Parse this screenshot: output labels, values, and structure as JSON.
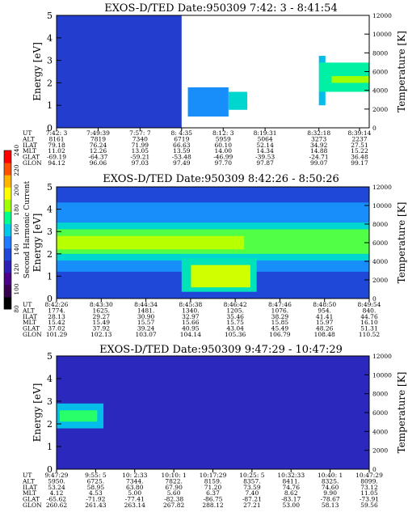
{
  "chart_data": [
    {
      "type": "heatmap",
      "title": "EXOS-D/TED   Date:950309  7:42: 3 - 8:41:54",
      "ylabel": "Energy [eV]",
      "y2label": "Temperature [K]",
      "ylim": [
        0,
        5
      ],
      "y2lim": [
        0,
        12000
      ],
      "yticks": [
        "0",
        "1",
        "2",
        "3",
        "4",
        "5"
      ],
      "y2ticks": [
        "0",
        "2000",
        "4000",
        "6000",
        "8000",
        "10000",
        "12000"
      ],
      "data_gap": "8:19:31 - 8:32:18",
      "bands": [
        {
          "x_start": 0.0,
          "x_end": 0.4,
          "energy_low": 0.0,
          "energy_high": 5.0,
          "level": 0.38
        },
        {
          "x_start": 0.42,
          "x_end": 0.55,
          "energy_low": 0.5,
          "energy_high": 1.8,
          "level": 0.5
        },
        {
          "x_start": 0.55,
          "x_end": 0.61,
          "energy_low": 0.8,
          "energy_high": 1.6,
          "level": 0.58
        },
        {
          "x_start": 0.8,
          "x_end": 0.86,
          "energy_low": 1.0,
          "energy_high": 3.2,
          "level": 0.55
        },
        {
          "x_start": 0.84,
          "x_end": 1.0,
          "energy_low": 1.6,
          "energy_high": 2.9,
          "level": 0.62
        },
        {
          "x_start": 0.88,
          "x_end": 1.0,
          "energy_low": 2.0,
          "energy_high": 2.3,
          "level": 0.72
        }
      ],
      "ephemeris_labels": [
        "UT",
        "ALT",
        "ILAT",
        "MLT",
        "GLAT",
        "GLON"
      ],
      "ephemeris": [
        [
          "7:42: 3",
          "8161",
          "79.18",
          "11.02",
          "-69.19",
          "94.12"
        ],
        [
          "7:49:39",
          "7819",
          "76.24",
          "12.26",
          "-64.37",
          "96.06"
        ],
        [
          "7:57: 7",
          "7340",
          "71.99",
          "13.05",
          "-59.21",
          "97.03"
        ],
        [
          "8: 4:35",
          "6719",
          "66.63",
          "13.59",
          "-53.48",
          "97.49"
        ],
        [
          "8:12: 3",
          "5959",
          "60.10",
          "14.00",
          "-46.99",
          "97.70"
        ],
        [
          "8:19:31",
          "5064",
          "52.14",
          "14.34",
          "-39.53",
          "97.87"
        ],
        [
          "8:32:18",
          "3273",
          "34.92",
          "14.88",
          "-24.71",
          "99.07"
        ],
        [
          "8:39:14",
          "2237",
          "27.51",
          "15.22",
          "36.48",
          "99.17"
        ]
      ]
    },
    {
      "type": "heatmap",
      "title": "EXOS-D/TED   Date:950309  8:42:26 - 8:50:26",
      "ylabel": "Energy [eV]",
      "y2label": "Temperature [K]",
      "ylim": [
        0,
        5
      ],
      "y2lim": [
        0,
        12000
      ],
      "yticks": [
        "0",
        "1",
        "2",
        "3",
        "4",
        "5"
      ],
      "y2ticks": [
        "0",
        "2000",
        "4000",
        "6000",
        "8000",
        "10000",
        "12000"
      ],
      "bands": [
        {
          "x_start": 0.0,
          "x_end": 1.0,
          "energy_low": 0.0,
          "energy_high": 5.0,
          "level": 0.4
        },
        {
          "x_start": 0.0,
          "x_end": 1.0,
          "energy_low": 1.2,
          "energy_high": 4.3,
          "level": 0.5
        },
        {
          "x_start": 0.0,
          "x_end": 1.0,
          "energy_low": 1.7,
          "energy_high": 3.4,
          "level": 0.58
        },
        {
          "x_start": 0.0,
          "x_end": 1.0,
          "energy_low": 2.0,
          "energy_high": 3.1,
          "level": 0.68
        },
        {
          "x_start": 0.0,
          "x_end": 0.6,
          "energy_low": 2.2,
          "energy_high": 2.8,
          "level": 0.74
        },
        {
          "x_start": 0.4,
          "x_end": 0.64,
          "energy_low": 0.3,
          "energy_high": 1.8,
          "level": 0.6
        },
        {
          "x_start": 0.43,
          "x_end": 0.62,
          "energy_low": 0.5,
          "energy_high": 1.5,
          "level": 0.76
        }
      ],
      "ephemeris_labels": [
        "UT",
        "ALT",
        "ILAT",
        "MLT",
        "GLAT",
        "GLON"
      ],
      "ephemeris": [
        [
          "8:42:26",
          "1774.",
          "28.13",
          "15.42",
          "37.02",
          "101.29"
        ],
        [
          "8:43:30",
          "1625.",
          "29.27",
          "15.49",
          "37.92",
          "102.13"
        ],
        [
          "8:44:34",
          "1481.",
          "30.90",
          "15.57",
          "39.24",
          "103.07"
        ],
        [
          "8:45:38",
          "1340.",
          "32.97",
          "15.66",
          "40.95",
          "104.14"
        ],
        [
          "8:46:42",
          "1205.",
          "35.46",
          "15.75",
          "43.04",
          "105.36"
        ],
        [
          "8:47:46",
          "1076.",
          "38.29",
          "15.85",
          "45.49",
          "106.79"
        ],
        [
          "8:48:50",
          "954.",
          "41.41",
          "15.97",
          "48.26",
          "108.48"
        ],
        [
          "8:49:54",
          "840.",
          "44.76",
          "16.10",
          "51.31",
          "110.52"
        ]
      ]
    },
    {
      "type": "heatmap",
      "title": "EXOS-D/TED   Date:950309  9:47:29 - 10:47:29",
      "ylabel": "Energy [eV]",
      "y2label": "Temperature [K]",
      "ylim": [
        0,
        5
      ],
      "y2lim": [
        0,
        12000
      ],
      "yticks": [
        "0",
        "1",
        "2",
        "3",
        "4",
        "5"
      ],
      "y2ticks": [
        "0",
        "2000",
        "4000",
        "6000",
        "8000",
        "10000",
        "12000"
      ],
      "bands": [
        {
          "x_start": 0.0,
          "x_end": 1.0,
          "energy_low": 0.0,
          "energy_high": 5.0,
          "level": 0.34
        },
        {
          "x_start": 0.0,
          "x_end": 0.15,
          "energy_low": 1.8,
          "energy_high": 2.9,
          "level": 0.55
        },
        {
          "x_start": 0.01,
          "x_end": 0.13,
          "energy_low": 2.1,
          "energy_high": 2.6,
          "level": 0.66
        }
      ],
      "ephemeris_labels": [
        "UT",
        "ALT",
        "ILAT",
        "MLT",
        "GLAT",
        "GLON"
      ],
      "ephemeris": [
        [
          "9:47:29",
          "5950.",
          "53.24",
          "4.12",
          "-65.62",
          "260.62"
        ],
        [
          "9:55: 5",
          "6725.",
          "58.95",
          "4.53",
          "-71.92",
          "261.43"
        ],
        [
          "10: 2:33",
          "7344.",
          "63.80",
          "5.00",
          "-77.41",
          "263.14"
        ],
        [
          "10:10: 1",
          "7822.",
          "67.90",
          "5.60",
          "-82.38",
          "267.82"
        ],
        [
          "10:17:29",
          "8159.",
          "71.20",
          "6.37",
          "-86.75",
          "288.12"
        ],
        [
          "10:25: 5",
          "8357.",
          "73.59",
          "7.40",
          "-87.21",
          "27.21"
        ],
        [
          "10:32:33",
          "8411.",
          "74.76",
          "8.62",
          "-83.17",
          "53.00"
        ],
        [
          "10:40: 1",
          "8325.",
          "74.60",
          "9.90",
          "-78.67",
          "58.13"
        ],
        [
          "10:47:29",
          "8099.",
          "73.12",
          "11.05",
          "-73.91",
          "59.56"
        ]
      ]
    }
  ],
  "colorbar": {
    "label": "Second Harmonic Current",
    "ticks": [
      "80",
      "100",
      "120",
      "140",
      "160",
      "180",
      "200",
      "220",
      "240"
    ],
    "colors": [
      "#000000",
      "#3a0050",
      "#4b0088",
      "#2f1fb4",
      "#1f47d8",
      "#1f7bff",
      "#00c8e6",
      "#00ff8c",
      "#a0ff00",
      "#ffff00",
      "#ffb400",
      "#ff5000",
      "#ff0000"
    ]
  }
}
